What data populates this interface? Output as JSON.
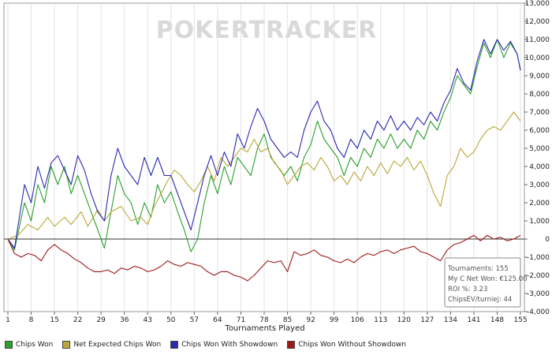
{
  "chart_data": {
    "type": "line",
    "watermark": "POKERTRACKER",
    "xlabel": "Tournaments Played",
    "xlim": [
      1,
      155
    ],
    "ylim": [
      -4000,
      13000
    ],
    "x_ticks": [
      1,
      8,
      15,
      22,
      29,
      36,
      43,
      50,
      57,
      64,
      71,
      78,
      85,
      92,
      99,
      106,
      113,
      120,
      127,
      134,
      141,
      148,
      155
    ],
    "y_ticks": [
      -4000,
      -3000,
      -2000,
      -1000,
      0,
      1000,
      2000,
      3000,
      4000,
      5000,
      6000,
      7000,
      8000,
      9000,
      10000,
      11000,
      12000,
      13000
    ],
    "y_tick_labels": [
      "-4,000",
      "-3,000",
      "-2,000",
      "-1,000",
      "0",
      "1,000",
      "2,000",
      "3,000",
      "4,000",
      "5,000",
      "6,000",
      "7,000",
      "8,000",
      "9,000",
      "10,000",
      "11,000",
      "12,000",
      "13,000"
    ],
    "grid": "vertical",
    "series": [
      {
        "name": "Chips Won",
        "color": "#2ca02c",
        "points": [
          [
            1,
            0
          ],
          [
            3,
            -600
          ],
          [
            6,
            2000
          ],
          [
            8,
            1000
          ],
          [
            10,
            3000
          ],
          [
            12,
            2000
          ],
          [
            14,
            4000
          ],
          [
            16,
            3000
          ],
          [
            18,
            4000
          ],
          [
            20,
            2500
          ],
          [
            22,
            3500
          ],
          [
            24,
            2500
          ],
          [
            26,
            1500
          ],
          [
            28,
            500
          ],
          [
            30,
            -500
          ],
          [
            32,
            1500
          ],
          [
            34,
            3500
          ],
          [
            36,
            2500
          ],
          [
            38,
            2000
          ],
          [
            40,
            800
          ],
          [
            42,
            2000
          ],
          [
            44,
            1200
          ],
          [
            46,
            3000
          ],
          [
            48,
            2000
          ],
          [
            50,
            2600
          ],
          [
            52,
            1500
          ],
          [
            54,
            500
          ],
          [
            56,
            -700
          ],
          [
            58,
            0
          ],
          [
            60,
            2000
          ],
          [
            62,
            3500
          ],
          [
            64,
            2500
          ],
          [
            66,
            4000
          ],
          [
            68,
            3000
          ],
          [
            70,
            4500
          ],
          [
            72,
            4000
          ],
          [
            74,
            3500
          ],
          [
            76,
            5000
          ],
          [
            78,
            5800
          ],
          [
            80,
            4500
          ],
          [
            82,
            4000
          ],
          [
            84,
            3500
          ],
          [
            86,
            4000
          ],
          [
            88,
            3200
          ],
          [
            90,
            4500
          ],
          [
            92,
            5200
          ],
          [
            94,
            6500
          ],
          [
            96,
            5500
          ],
          [
            98,
            5000
          ],
          [
            100,
            4500
          ],
          [
            102,
            3500
          ],
          [
            104,
            4500
          ],
          [
            106,
            4000
          ],
          [
            108,
            5000
          ],
          [
            110,
            4500
          ],
          [
            112,
            5500
          ],
          [
            114,
            5000
          ],
          [
            116,
            5800
          ],
          [
            118,
            5000
          ],
          [
            120,
            5500
          ],
          [
            122,
            5000
          ],
          [
            124,
            6000
          ],
          [
            126,
            5500
          ],
          [
            128,
            6500
          ],
          [
            130,
            6000
          ],
          [
            132,
            7000
          ],
          [
            134,
            7800
          ],
          [
            136,
            9000
          ],
          [
            138,
            8500
          ],
          [
            140,
            8000
          ],
          [
            142,
            9500
          ],
          [
            144,
            10800
          ],
          [
            146,
            10000
          ],
          [
            148,
            11000
          ],
          [
            150,
            10000
          ],
          [
            152,
            10800
          ],
          [
            154,
            10200
          ],
          [
            155,
            9300
          ]
        ]
      },
      {
        "name": "Net Expected Chips Won",
        "color": "#b8a93a",
        "points": [
          [
            1,
            0
          ],
          [
            4,
            200
          ],
          [
            7,
            800
          ],
          [
            10,
            500
          ],
          [
            13,
            1200
          ],
          [
            15,
            700
          ],
          [
            18,
            1200
          ],
          [
            20,
            800
          ],
          [
            23,
            1500
          ],
          [
            25,
            700
          ],
          [
            28,
            1600
          ],
          [
            30,
            1000
          ],
          [
            32,
            1500
          ],
          [
            35,
            1800
          ],
          [
            38,
            1000
          ],
          [
            41,
            1200
          ],
          [
            43,
            800
          ],
          [
            45,
            1800
          ],
          [
            47,
            2500
          ],
          [
            49,
            3200
          ],
          [
            51,
            3800
          ],
          [
            53,
            3500
          ],
          [
            55,
            3000
          ],
          [
            57,
            2600
          ],
          [
            59,
            3200
          ],
          [
            61,
            4000
          ],
          [
            63,
            3200
          ],
          [
            65,
            4500
          ],
          [
            67,
            4000
          ],
          [
            69,
            4500
          ],
          [
            71,
            5000
          ],
          [
            73,
            4800
          ],
          [
            75,
            5500
          ],
          [
            77,
            4800
          ],
          [
            79,
            5000
          ],
          [
            81,
            4200
          ],
          [
            83,
            3800
          ],
          [
            85,
            3000
          ],
          [
            87,
            3500
          ],
          [
            89,
            4000
          ],
          [
            91,
            4200
          ],
          [
            93,
            3800
          ],
          [
            95,
            4500
          ],
          [
            97,
            4000
          ],
          [
            99,
            3200
          ],
          [
            101,
            3500
          ],
          [
            103,
            3000
          ],
          [
            105,
            3700
          ],
          [
            107,
            3200
          ],
          [
            109,
            4000
          ],
          [
            111,
            3500
          ],
          [
            113,
            4200
          ],
          [
            115,
            3600
          ],
          [
            117,
            4300
          ],
          [
            119,
            4000
          ],
          [
            121,
            4500
          ],
          [
            123,
            3800
          ],
          [
            125,
            4300
          ],
          [
            127,
            3500
          ],
          [
            129,
            2500
          ],
          [
            131,
            1800
          ],
          [
            133,
            3500
          ],
          [
            135,
            4000
          ],
          [
            137,
            5000
          ],
          [
            139,
            4500
          ],
          [
            141,
            4800
          ],
          [
            143,
            5500
          ],
          [
            145,
            6000
          ],
          [
            147,
            6200
          ],
          [
            149,
            6000
          ],
          [
            151,
            6500
          ],
          [
            153,
            7000
          ],
          [
            155,
            6500
          ]
        ]
      },
      {
        "name": "Chips Won With Showdown",
        "color": "#2a2ab0",
        "points": [
          [
            1,
            0
          ],
          [
            3,
            -500
          ],
          [
            6,
            3000
          ],
          [
            8,
            2000
          ],
          [
            10,
            4000
          ],
          [
            12,
            2800
          ],
          [
            14,
            4200
          ],
          [
            16,
            4600
          ],
          [
            18,
            3800
          ],
          [
            20,
            3000
          ],
          [
            22,
            4600
          ],
          [
            24,
            3800
          ],
          [
            26,
            2500
          ],
          [
            28,
            1500
          ],
          [
            30,
            1000
          ],
          [
            32,
            3500
          ],
          [
            34,
            5000
          ],
          [
            36,
            4000
          ],
          [
            38,
            3500
          ],
          [
            40,
            3000
          ],
          [
            42,
            4500
          ],
          [
            44,
            3500
          ],
          [
            46,
            4500
          ],
          [
            48,
            3500
          ],
          [
            50,
            3500
          ],
          [
            52,
            2500
          ],
          [
            54,
            1500
          ],
          [
            56,
            500
          ],
          [
            58,
            2000
          ],
          [
            60,
            3500
          ],
          [
            62,
            4600
          ],
          [
            64,
            3500
          ],
          [
            66,
            4800
          ],
          [
            68,
            4000
          ],
          [
            70,
            5800
          ],
          [
            72,
            5000
          ],
          [
            74,
            6200
          ],
          [
            76,
            7200
          ],
          [
            78,
            6500
          ],
          [
            80,
            5500
          ],
          [
            82,
            5000
          ],
          [
            84,
            4500
          ],
          [
            86,
            4800
          ],
          [
            88,
            4500
          ],
          [
            90,
            6000
          ],
          [
            92,
            7000
          ],
          [
            94,
            7600
          ],
          [
            96,
            6500
          ],
          [
            98,
            6000
          ],
          [
            100,
            5000
          ],
          [
            102,
            4500
          ],
          [
            104,
            5500
          ],
          [
            106,
            5000
          ],
          [
            108,
            6000
          ],
          [
            110,
            5500
          ],
          [
            112,
            6500
          ],
          [
            114,
            6000
          ],
          [
            116,
            6800
          ],
          [
            118,
            6000
          ],
          [
            120,
            6500
          ],
          [
            122,
            6000
          ],
          [
            124,
            6700
          ],
          [
            126,
            6300
          ],
          [
            128,
            7000
          ],
          [
            130,
            6500
          ],
          [
            132,
            7500
          ],
          [
            134,
            8200
          ],
          [
            136,
            9400
          ],
          [
            138,
            8600
          ],
          [
            140,
            8200
          ],
          [
            142,
            9800
          ],
          [
            144,
            11000
          ],
          [
            146,
            10200
          ],
          [
            148,
            11000
          ],
          [
            150,
            10400
          ],
          [
            152,
            10900
          ],
          [
            154,
            10200
          ],
          [
            155,
            9300
          ]
        ]
      },
      {
        "name": "Chips Won Without Showdown",
        "color": "#a01818",
        "points": [
          [
            1,
            0
          ],
          [
            3,
            -800
          ],
          [
            5,
            -1000
          ],
          [
            7,
            -800
          ],
          [
            9,
            -900
          ],
          [
            11,
            -1200
          ],
          [
            13,
            -600
          ],
          [
            15,
            -300
          ],
          [
            17,
            -600
          ],
          [
            19,
            -800
          ],
          [
            21,
            -1100
          ],
          [
            23,
            -1300
          ],
          [
            25,
            -1600
          ],
          [
            27,
            -1800
          ],
          [
            29,
            -1800
          ],
          [
            31,
            -1700
          ],
          [
            33,
            -1900
          ],
          [
            35,
            -1600
          ],
          [
            37,
            -1700
          ],
          [
            39,
            -1500
          ],
          [
            41,
            -1600
          ],
          [
            43,
            -1800
          ],
          [
            45,
            -1700
          ],
          [
            47,
            -1500
          ],
          [
            49,
            -1200
          ],
          [
            51,
            -1400
          ],
          [
            53,
            -1500
          ],
          [
            55,
            -1300
          ],
          [
            57,
            -1400
          ],
          [
            59,
            -1500
          ],
          [
            61,
            -1800
          ],
          [
            63,
            -2000
          ],
          [
            65,
            -1800
          ],
          [
            67,
            -1800
          ],
          [
            69,
            -2000
          ],
          [
            71,
            -2100
          ],
          [
            73,
            -2300
          ],
          [
            75,
            -2000
          ],
          [
            77,
            -1600
          ],
          [
            79,
            -1200
          ],
          [
            81,
            -1300
          ],
          [
            83,
            -1200
          ],
          [
            85,
            -1800
          ],
          [
            87,
            -700
          ],
          [
            89,
            -900
          ],
          [
            91,
            -800
          ],
          [
            93,
            -600
          ],
          [
            95,
            -900
          ],
          [
            97,
            -1000
          ],
          [
            99,
            -1200
          ],
          [
            101,
            -1300
          ],
          [
            103,
            -1100
          ],
          [
            105,
            -1300
          ],
          [
            107,
            -1000
          ],
          [
            109,
            -800
          ],
          [
            111,
            -900
          ],
          [
            113,
            -700
          ],
          [
            115,
            -600
          ],
          [
            117,
            -800
          ],
          [
            119,
            -600
          ],
          [
            121,
            -500
          ],
          [
            123,
            -400
          ],
          [
            125,
            -700
          ],
          [
            127,
            -800
          ],
          [
            129,
            -1000
          ],
          [
            131,
            -1200
          ],
          [
            133,
            -600
          ],
          [
            135,
            -300
          ],
          [
            137,
            -200
          ],
          [
            139,
            0
          ],
          [
            141,
            200
          ],
          [
            143,
            -100
          ],
          [
            145,
            200
          ],
          [
            147,
            0
          ],
          [
            149,
            100
          ],
          [
            151,
            -100
          ],
          [
            153,
            0
          ],
          [
            155,
            200
          ]
        ]
      }
    ],
    "tooltip": {
      "lines": [
        "Tournaments: 155",
        "My C Net Won: €125.00",
        "ROI %: 3.23",
        "ChipsEV/turniej: 44"
      ]
    }
  }
}
